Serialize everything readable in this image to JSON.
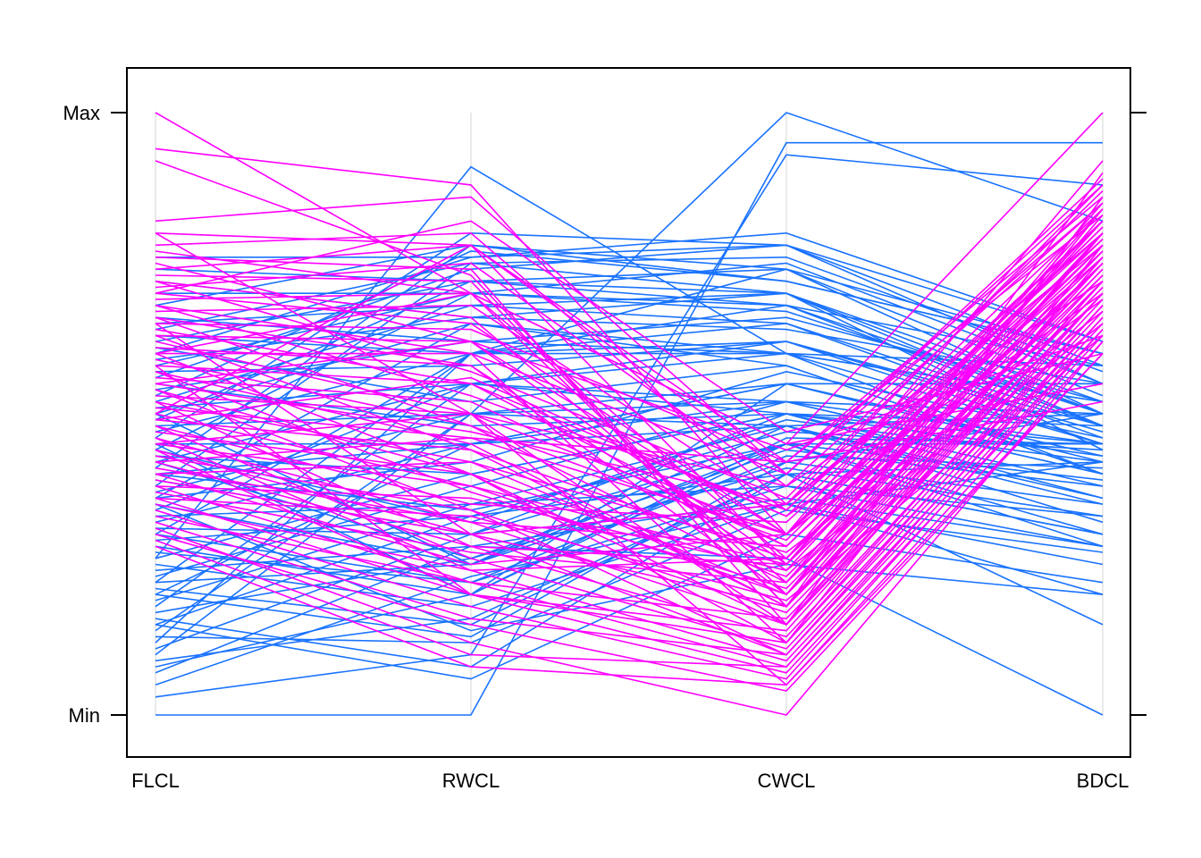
{
  "chart_data": {
    "type": "line",
    "subtype": "parallel-coordinates",
    "title": "",
    "axes": [
      "FLCL",
      "RWCL",
      "CWCL",
      "BDCL"
    ],
    "y_tick_labels": [
      "Min",
      "Max"
    ],
    "ylim": [
      0,
      1
    ],
    "grid": true,
    "legend": "none",
    "series": [
      {
        "color": "#1a73ff",
        "lines": [
          [
            0.0,
            0.0,
            0.95,
            0.95
          ],
          [
            0.03,
            0.1,
            0.93,
            0.88
          ],
          [
            0.1,
            0.5,
            1.0,
            0.82
          ],
          [
            0.12,
            0.6,
            0.6,
            0.4
          ],
          [
            0.14,
            0.5,
            0.55,
            0.55
          ],
          [
            0.16,
            0.08,
            0.4,
            0.3
          ],
          [
            0.18,
            0.55,
            0.5,
            0.45
          ],
          [
            0.2,
            0.45,
            0.48,
            0.35
          ],
          [
            0.2,
            0.13,
            0.42,
            0.5
          ],
          [
            0.21,
            0.15,
            0.4,
            0.42
          ],
          [
            0.22,
            0.25,
            0.45,
            0.28
          ],
          [
            0.23,
            0.38,
            0.52,
            0.4
          ],
          [
            0.25,
            0.18,
            0.35,
            0.25
          ],
          [
            0.26,
            0.4,
            0.5,
            0.48
          ],
          [
            0.28,
            0.2,
            0.45,
            0.3
          ],
          [
            0.3,
            0.22,
            0.38,
            0.28
          ],
          [
            0.3,
            0.6,
            0.68,
            0.48
          ],
          [
            0.31,
            0.3,
            0.35,
            0.42
          ],
          [
            0.32,
            0.45,
            0.52,
            0.45
          ],
          [
            0.33,
            0.35,
            0.48,
            0.5
          ],
          [
            0.34,
            0.55,
            0.52,
            0.4
          ],
          [
            0.35,
            0.25,
            0.42,
            0.35
          ],
          [
            0.36,
            0.65,
            0.6,
            0.58
          ],
          [
            0.37,
            0.5,
            0.48,
            0.32
          ],
          [
            0.38,
            0.75,
            0.7,
            0.52
          ],
          [
            0.39,
            0.3,
            0.45,
            0.45
          ],
          [
            0.4,
            0.45,
            0.55,
            0.55
          ],
          [
            0.41,
            0.78,
            0.74,
            0.6
          ],
          [
            0.42,
            0.55,
            0.62,
            0.48
          ],
          [
            0.43,
            0.4,
            0.5,
            0.38
          ],
          [
            0.44,
            0.7,
            0.67,
            0.5
          ],
          [
            0.45,
            0.45,
            0.55,
            0.42
          ],
          [
            0.46,
            0.8,
            0.78,
            0.55
          ],
          [
            0.47,
            0.6,
            0.65,
            0.46
          ],
          [
            0.48,
            0.5,
            0.52,
            0.5
          ],
          [
            0.49,
            0.72,
            0.7,
            0.44
          ],
          [
            0.5,
            0.65,
            0.58,
            0.4
          ],
          [
            0.51,
            0.55,
            0.6,
            0.52
          ],
          [
            0.52,
            0.68,
            0.65,
            0.48
          ],
          [
            0.53,
            0.77,
            0.72,
            0.6
          ],
          [
            0.54,
            0.62,
            0.6,
            0.45
          ],
          [
            0.55,
            0.48,
            0.5,
            0.43
          ],
          [
            0.56,
            0.74,
            0.78,
            0.58
          ],
          [
            0.57,
            0.58,
            0.62,
            0.47
          ],
          [
            0.58,
            0.7,
            0.68,
            0.5
          ],
          [
            0.59,
            0.66,
            0.64,
            0.55
          ],
          [
            0.6,
            0.76,
            0.8,
            0.62
          ],
          [
            0.61,
            0.52,
            0.58,
            0.4
          ],
          [
            0.62,
            0.72,
            0.74,
            0.53
          ],
          [
            0.63,
            0.6,
            0.62,
            0.45
          ],
          [
            0.64,
            0.75,
            0.76,
            0.57
          ],
          [
            0.65,
            0.68,
            0.7,
            0.48
          ],
          [
            0.66,
            0.62,
            0.66,
            0.52
          ],
          [
            0.68,
            0.78,
            0.72,
            0.6
          ],
          [
            0.7,
            0.7,
            0.75,
            0.55
          ],
          [
            0.72,
            0.66,
            0.7,
            0.5
          ],
          [
            0.74,
            0.72,
            0.68,
            0.58
          ],
          [
            0.76,
            0.76,
            0.78,
            0.62
          ],
          [
            0.26,
            0.91,
            0.6,
            0.52
          ],
          [
            0.05,
            0.23,
            0.35,
            0.2
          ],
          [
            0.08,
            0.2,
            0.46,
            0.45
          ],
          [
            0.11,
            0.3,
            0.5,
            0.36
          ],
          [
            0.15,
            0.33,
            0.4,
            0.3
          ],
          [
            0.17,
            0.26,
            0.44,
            0.38
          ],
          [
            0.19,
            0.35,
            0.38,
            0.33
          ],
          [
            0.24,
            0.28,
            0.36,
            0.28
          ],
          [
            0.27,
            0.22,
            0.43,
            0.41
          ],
          [
            0.29,
            0.33,
            0.47,
            0.44
          ],
          [
            0.15,
            0.06,
            0.3,
            0.22
          ],
          [
            0.13,
            0.12,
            0.34,
            0.27
          ],
          [
            0.09,
            0.16,
            0.4,
            0.15
          ],
          [
            0.07,
            0.28,
            0.26,
            0.0
          ],
          [
            0.35,
            0.14,
            0.25,
            0.2
          ],
          [
            0.45,
            0.2,
            0.55,
            0.43
          ],
          [
            0.5,
            0.25,
            0.48,
            0.36
          ],
          [
            0.22,
            0.6,
            0.74,
            0.5
          ],
          [
            0.36,
            0.42,
            0.57,
            0.46
          ],
          [
            0.4,
            0.34,
            0.45,
            0.39
          ],
          [
            0.42,
            0.26,
            0.41,
            0.33
          ],
          [
            0.44,
            0.32,
            0.49,
            0.42
          ]
        ]
      },
      {
        "color": "#ff00ff",
        "lines": [
          [
            1.0,
            0.7,
            0.45,
            1.0
          ],
          [
            0.94,
            0.88,
            0.3,
            0.92
          ],
          [
            0.92,
            0.73,
            0.18,
            0.9
          ],
          [
            0.82,
            0.86,
            0.4,
            0.89
          ],
          [
            0.8,
            0.78,
            0.25,
            0.85
          ],
          [
            0.78,
            0.8,
            0.35,
            0.88
          ],
          [
            0.77,
            0.7,
            0.2,
            0.84
          ],
          [
            0.76,
            0.74,
            0.15,
            0.86
          ],
          [
            0.75,
            0.62,
            0.25,
            0.82
          ],
          [
            0.74,
            0.78,
            0.4,
            0.88
          ],
          [
            0.73,
            0.72,
            0.18,
            0.8
          ],
          [
            0.72,
            0.66,
            0.22,
            0.83
          ],
          [
            0.71,
            0.75,
            0.38,
            0.85
          ],
          [
            0.7,
            0.65,
            0.3,
            0.82
          ],
          [
            0.69,
            0.7,
            0.26,
            0.84
          ],
          [
            0.68,
            0.6,
            0.12,
            0.78
          ],
          [
            0.67,
            0.68,
            0.34,
            0.82
          ],
          [
            0.66,
            0.58,
            0.2,
            0.8
          ],
          [
            0.65,
            0.64,
            0.42,
            0.86
          ],
          [
            0.64,
            0.55,
            0.28,
            0.79
          ],
          [
            0.63,
            0.62,
            0.3,
            0.81
          ],
          [
            0.62,
            0.5,
            0.15,
            0.76
          ],
          [
            0.61,
            0.58,
            0.24,
            0.8
          ],
          [
            0.6,
            0.6,
            0.4,
            0.85
          ],
          [
            0.59,
            0.48,
            0.22,
            0.77
          ],
          [
            0.58,
            0.55,
            0.33,
            0.82
          ],
          [
            0.57,
            0.45,
            0.18,
            0.75
          ],
          [
            0.56,
            0.52,
            0.28,
            0.78
          ],
          [
            0.55,
            0.47,
            0.35,
            0.8
          ],
          [
            0.54,
            0.4,
            0.15,
            0.72
          ],
          [
            0.53,
            0.5,
            0.3,
            0.79
          ],
          [
            0.52,
            0.42,
            0.2,
            0.74
          ],
          [
            0.51,
            0.46,
            0.42,
            0.83
          ],
          [
            0.5,
            0.38,
            0.25,
            0.76
          ],
          [
            0.49,
            0.44,
            0.18,
            0.73
          ],
          [
            0.48,
            0.35,
            0.32,
            0.8
          ],
          [
            0.47,
            0.4,
            0.12,
            0.7
          ],
          [
            0.46,
            0.32,
            0.28,
            0.77
          ],
          [
            0.45,
            0.38,
            0.2,
            0.72
          ],
          [
            0.44,
            0.3,
            0.35,
            0.78
          ],
          [
            0.43,
            0.34,
            0.1,
            0.68
          ],
          [
            0.42,
            0.28,
            0.25,
            0.75
          ],
          [
            0.41,
            0.32,
            0.15,
            0.7
          ],
          [
            0.4,
            0.25,
            0.3,
            0.76
          ],
          [
            0.39,
            0.3,
            0.18,
            0.71
          ],
          [
            0.38,
            0.22,
            0.08,
            0.66
          ],
          [
            0.37,
            0.27,
            0.22,
            0.73
          ],
          [
            0.36,
            0.2,
            0.12,
            0.68
          ],
          [
            0.35,
            0.24,
            0.26,
            0.75
          ],
          [
            0.34,
            0.18,
            0.06,
            0.64
          ],
          [
            0.33,
            0.22,
            0.16,
            0.7
          ],
          [
            0.32,
            0.16,
            0.1,
            0.66
          ],
          [
            0.31,
            0.12,
            0.0,
            0.62
          ],
          [
            0.3,
            0.15,
            0.04,
            0.6
          ],
          [
            0.29,
            0.1,
            0.08,
            0.64
          ],
          [
            0.28,
            0.08,
            0.05,
            0.62
          ],
          [
            0.6,
            0.7,
            0.45,
            0.55
          ],
          [
            0.5,
            0.78,
            0.42,
            0.52
          ],
          [
            0.7,
            0.82,
            0.47,
            0.6
          ],
          [
            0.8,
            0.5,
            0.05,
            0.6
          ],
          [
            0.65,
            0.3,
            0.1,
            0.68
          ],
          [
            0.58,
            0.2,
            0.14,
            0.72
          ],
          [
            0.55,
            0.62,
            0.44,
            0.63
          ],
          [
            0.49,
            0.56,
            0.33,
            0.7
          ],
          [
            0.45,
            0.5,
            0.38,
            0.72
          ],
          [
            0.42,
            0.46,
            0.3,
            0.69
          ],
          [
            0.4,
            0.42,
            0.27,
            0.67
          ],
          [
            0.38,
            0.36,
            0.24,
            0.65
          ],
          [
            0.36,
            0.33,
            0.19,
            0.63
          ],
          [
            0.72,
            0.57,
            0.36,
            0.87
          ],
          [
            0.68,
            0.53,
            0.34,
            0.84
          ],
          [
            0.66,
            0.48,
            0.29,
            0.81
          ],
          [
            0.63,
            0.44,
            0.26,
            0.78
          ],
          [
            0.6,
            0.4,
            0.23,
            0.75
          ],
          [
            0.57,
            0.37,
            0.21,
            0.74
          ],
          [
            0.54,
            0.34,
            0.17,
            0.71
          ],
          [
            0.52,
            0.28,
            0.13,
            0.69
          ],
          [
            0.48,
            0.26,
            0.11,
            0.67
          ],
          [
            0.46,
            0.24,
            0.09,
            0.65
          ],
          [
            0.44,
            0.2,
            0.07,
            0.63
          ]
        ]
      }
    ]
  }
}
